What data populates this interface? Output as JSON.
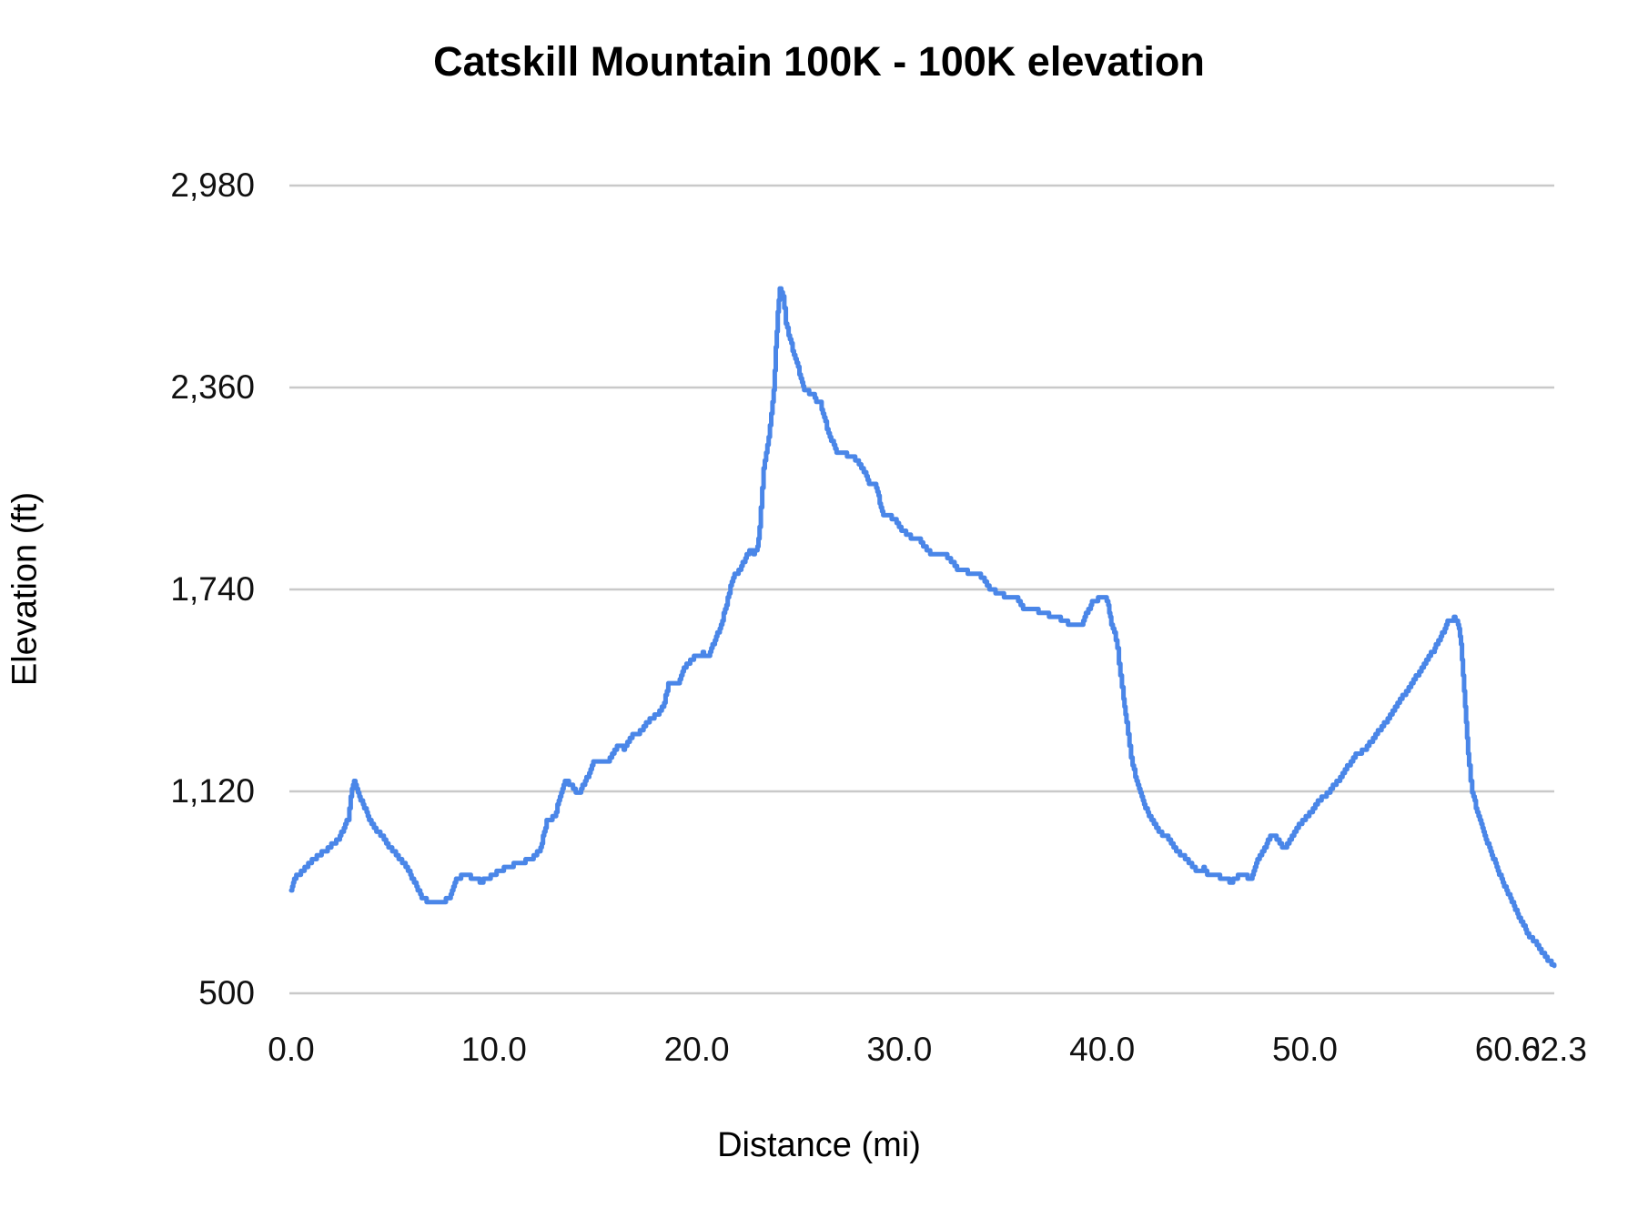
{
  "title": "Catskill Mountain 100K - 100K elevation",
  "chart_data": {
    "type": "line",
    "title": "Catskill Mountain 100K - 100K elevation",
    "xlabel": "Distance (mi)",
    "ylabel": "Elevation (ft)",
    "xlim": [
      0,
      62.3
    ],
    "ylim": [
      500,
      2980
    ],
    "grid": "horizontal-only",
    "legend_position": "none",
    "line_color": "#4a86e8",
    "grid_color": "#c9c9c9",
    "text_color": "#000000",
    "background_color": "#ffffff",
    "y_ticks": [
      {
        "value": 500,
        "label": "500"
      },
      {
        "value": 1120,
        "label": "1,120"
      },
      {
        "value": 1740,
        "label": "1,740"
      },
      {
        "value": 2360,
        "label": "2,360"
      },
      {
        "value": 2980,
        "label": "2,980"
      }
    ],
    "x_ticks": [
      {
        "value": 0,
        "label": "0.0"
      },
      {
        "value": 10,
        "label": "10.0"
      },
      {
        "value": 20,
        "label": "20.0"
      },
      {
        "value": 30,
        "label": "30.0"
      },
      {
        "value": 40,
        "label": "40.0"
      },
      {
        "value": 50,
        "label": "50.0"
      },
      {
        "value": 60,
        "label": "60.0"
      },
      {
        "value": 62.3,
        "label": "62.3"
      }
    ],
    "series": [
      {
        "name": "100K elevation",
        "points": [
          [
            0,
            815
          ],
          [
            0.15,
            850
          ],
          [
            0.3,
            862
          ],
          [
            0.6,
            880
          ],
          [
            0.9,
            900
          ],
          [
            1.2,
            916
          ],
          [
            1.5,
            930
          ],
          [
            1.8,
            944
          ],
          [
            2.1,
            962
          ],
          [
            2.4,
            980
          ],
          [
            2.6,
            1010
          ],
          [
            2.8,
            1036
          ],
          [
            3.0,
            1130
          ],
          [
            3.1,
            1148
          ],
          [
            3.3,
            1110
          ],
          [
            3.6,
            1073
          ],
          [
            3.9,
            1028
          ],
          [
            4.2,
            1000
          ],
          [
            4.4,
            989
          ],
          [
            4.8,
            952
          ],
          [
            5.1,
            930
          ],
          [
            5.3,
            916
          ],
          [
            5.7,
            888
          ],
          [
            6.0,
            849
          ],
          [
            6.3,
            813
          ],
          [
            6.5,
            790
          ],
          [
            6.8,
            780
          ],
          [
            7.1,
            777
          ],
          [
            7.4,
            780
          ],
          [
            7.8,
            792
          ],
          [
            8.0,
            830
          ],
          [
            8.2,
            855
          ],
          [
            8.5,
            860
          ],
          [
            8.8,
            858
          ],
          [
            9.1,
            856
          ],
          [
            9.3,
            841
          ],
          [
            9.6,
            850
          ],
          [
            9.9,
            862
          ],
          [
            10.3,
            878
          ],
          [
            10.8,
            891
          ],
          [
            11.2,
            898
          ],
          [
            11.5,
            905
          ],
          [
            11.9,
            916
          ],
          [
            12.3,
            945
          ],
          [
            12.6,
            1028
          ],
          [
            13.0,
            1045
          ],
          [
            13.2,
            1090
          ],
          [
            13.5,
            1150
          ],
          [
            13.7,
            1145
          ],
          [
            13.9,
            1130
          ],
          [
            14.1,
            1114
          ],
          [
            14.3,
            1125
          ],
          [
            14.5,
            1156
          ],
          [
            14.7,
            1176
          ],
          [
            14.9,
            1215
          ],
          [
            15.3,
            1213
          ],
          [
            15.6,
            1210
          ],
          [
            16.0,
            1250
          ],
          [
            16.2,
            1262
          ],
          [
            16.4,
            1252
          ],
          [
            16.7,
            1280
          ],
          [
            16.9,
            1296
          ],
          [
            17.2,
            1302
          ],
          [
            17.5,
            1330
          ],
          [
            17.8,
            1345
          ],
          [
            18.1,
            1360
          ],
          [
            18.4,
            1390
          ],
          [
            18.6,
            1450
          ],
          [
            18.9,
            1452
          ],
          [
            19.1,
            1447
          ],
          [
            19.3,
            1489
          ],
          [
            19.5,
            1511
          ],
          [
            19.8,
            1525
          ],
          [
            20.0,
            1540
          ],
          [
            20.3,
            1542
          ],
          [
            20.6,
            1540
          ],
          [
            20.9,
            1587
          ],
          [
            21.2,
            1631
          ],
          [
            21.4,
            1679
          ],
          [
            21.6,
            1729
          ],
          [
            21.8,
            1780
          ],
          [
            22.0,
            1788
          ],
          [
            22.2,
            1810
          ],
          [
            22.4,
            1838
          ],
          [
            22.6,
            1858
          ],
          [
            22.8,
            1852
          ],
          [
            23.0,
            1868
          ],
          [
            23.1,
            1930
          ],
          [
            23.3,
            2115
          ],
          [
            23.55,
            2209
          ],
          [
            23.8,
            2349
          ],
          [
            23.9,
            2480
          ],
          [
            24.0,
            2592
          ],
          [
            24.1,
            2665
          ],
          [
            24.25,
            2645
          ],
          [
            24.4,
            2560
          ],
          [
            24.6,
            2505
          ],
          [
            24.8,
            2460
          ],
          [
            25.0,
            2420
          ],
          [
            25.2,
            2372
          ],
          [
            25.35,
            2350
          ],
          [
            25.55,
            2345
          ],
          [
            25.75,
            2342
          ],
          [
            25.9,
            2316
          ],
          [
            26.1,
            2313
          ],
          [
            26.35,
            2250
          ],
          [
            26.5,
            2218
          ],
          [
            26.7,
            2190
          ],
          [
            26.9,
            2163
          ],
          [
            27.3,
            2155
          ],
          [
            27.7,
            2148
          ],
          [
            28.0,
            2128
          ],
          [
            28.3,
            2098
          ],
          [
            28.5,
            2064
          ],
          [
            28.8,
            2060
          ],
          [
            29.2,
            1972
          ],
          [
            29.5,
            1966
          ],
          [
            29.8,
            1952
          ],
          [
            30.1,
            1924
          ],
          [
            30.5,
            1902
          ],
          [
            31.0,
            1894
          ],
          [
            31.4,
            1855
          ],
          [
            31.7,
            1850
          ],
          [
            32.0,
            1846
          ],
          [
            32.3,
            1843
          ],
          [
            32.6,
            1824
          ],
          [
            32.9,
            1800
          ],
          [
            33.2,
            1795
          ],
          [
            33.6,
            1792
          ],
          [
            33.9,
            1790
          ],
          [
            34.2,
            1768
          ],
          [
            34.5,
            1740
          ],
          [
            34.8,
            1730
          ],
          [
            35.1,
            1722
          ],
          [
            35.5,
            1714
          ],
          [
            35.8,
            1710
          ],
          [
            36.1,
            1685
          ],
          [
            36.4,
            1678
          ],
          [
            36.8,
            1674
          ],
          [
            37.2,
            1670
          ],
          [
            37.5,
            1655
          ],
          [
            37.9,
            1650
          ],
          [
            38.2,
            1640
          ],
          [
            38.5,
            1632
          ],
          [
            38.8,
            1630
          ],
          [
            39.0,
            1636
          ],
          [
            39.2,
            1665
          ],
          [
            39.5,
            1698
          ],
          [
            39.8,
            1710
          ],
          [
            40.0,
            1715
          ],
          [
            40.15,
            1718
          ],
          [
            40.3,
            1690
          ],
          [
            40.45,
            1635
          ],
          [
            40.6,
            1610
          ],
          [
            40.75,
            1556
          ],
          [
            40.9,
            1475
          ],
          [
            41.05,
            1400
          ],
          [
            41.2,
            1330
          ],
          [
            41.35,
            1258
          ],
          [
            41.5,
            1196
          ],
          [
            41.7,
            1156
          ],
          [
            41.95,
            1098
          ],
          [
            42.25,
            1056
          ],
          [
            42.55,
            1022
          ],
          [
            42.9,
            990
          ],
          [
            43.2,
            978
          ],
          [
            43.65,
            941
          ],
          [
            44.15,
            911
          ],
          [
            44.55,
            885
          ],
          [
            44.8,
            872
          ],
          [
            45.0,
            885
          ],
          [
            45.3,
            858
          ],
          [
            45.7,
            860
          ],
          [
            46.1,
            848
          ],
          [
            46.4,
            843
          ],
          [
            46.7,
            858
          ],
          [
            47.0,
            863
          ],
          [
            47.35,
            852
          ],
          [
            47.6,
            902
          ],
          [
            48.0,
            945
          ],
          [
            48.35,
            989
          ],
          [
            48.6,
            975
          ],
          [
            48.75,
            961
          ],
          [
            49.0,
            944
          ],
          [
            49.3,
            975
          ],
          [
            49.7,
            1017
          ],
          [
            50.1,
            1045
          ],
          [
            50.45,
            1070
          ],
          [
            50.7,
            1092
          ],
          [
            51.2,
            1120
          ],
          [
            51.8,
            1167
          ],
          [
            52.2,
            1205
          ],
          [
            52.5,
            1232
          ],
          [
            53.0,
            1251
          ],
          [
            53.6,
            1302
          ],
          [
            54.2,
            1352
          ],
          [
            54.75,
            1405
          ],
          [
            55.3,
            1455
          ],
          [
            55.75,
            1498
          ],
          [
            56.1,
            1533
          ],
          [
            56.4,
            1559
          ],
          [
            56.7,
            1595
          ],
          [
            56.9,
            1623
          ],
          [
            57.1,
            1648
          ],
          [
            57.35,
            1650
          ],
          [
            57.5,
            1640
          ],
          [
            57.6,
            1617
          ],
          [
            57.7,
            1567
          ],
          [
            57.8,
            1475
          ],
          [
            57.9,
            1380
          ],
          [
            58.0,
            1288
          ],
          [
            58.1,
            1195
          ],
          [
            58.25,
            1120
          ],
          [
            58.5,
            1056
          ],
          [
            58.7,
            1017
          ],
          [
            59.1,
            944
          ],
          [
            59.4,
            897
          ],
          [
            59.7,
            849
          ],
          [
            60.2,
            785
          ],
          [
            60.6,
            729
          ],
          [
            61.0,
            682
          ],
          [
            61.5,
            645
          ],
          [
            61.9,
            609
          ],
          [
            62.1,
            597
          ],
          [
            62.3,
            584
          ]
        ]
      }
    ]
  }
}
